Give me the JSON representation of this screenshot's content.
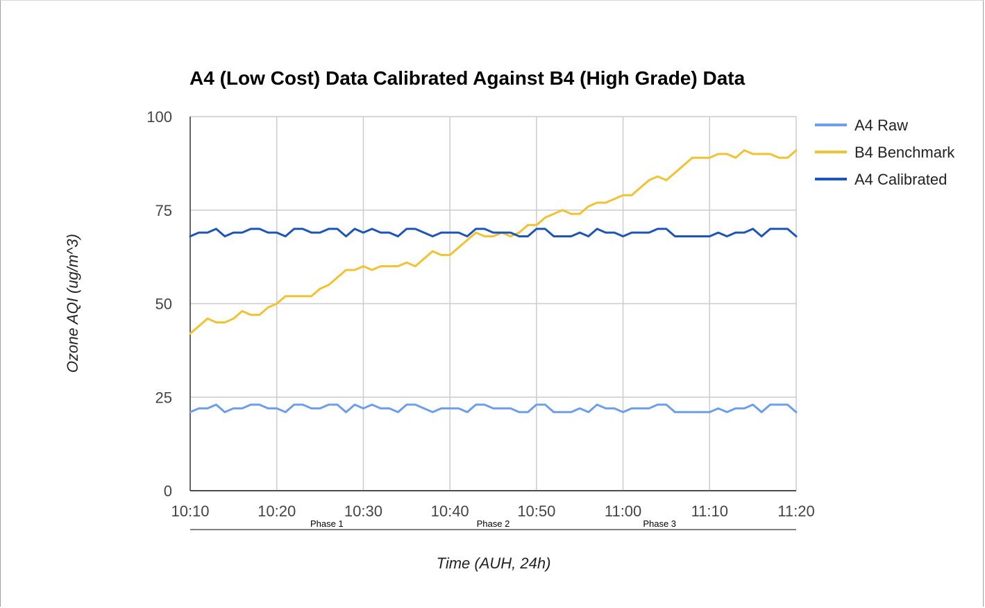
{
  "chart_data": {
    "type": "line",
    "title": "A4 (Low Cost) Data Calibrated Against B4 (High Grade) Data",
    "xlabel": "Time (AUH, 24h)",
    "ylabel": "Ozone AQI (ug/m^3)",
    "ylim": [
      0,
      100
    ],
    "yticks": [
      0,
      25,
      50,
      75,
      100
    ],
    "xticks": [
      "10:10",
      "10:20",
      "10:30",
      "10:40",
      "10:50",
      "11:00",
      "11:10",
      "11:20"
    ],
    "x_start_minutes": 610,
    "x_end_minutes": 680,
    "grid": true,
    "legend_position": "right",
    "x": [
      "10:10",
      "10:11",
      "10:12",
      "10:13",
      "10:14",
      "10:15",
      "10:16",
      "10:17",
      "10:18",
      "10:19",
      "10:20",
      "10:21",
      "10:22",
      "10:23",
      "10:24",
      "10:25",
      "10:26",
      "10:27",
      "10:28",
      "10:29",
      "10:30",
      "10:31",
      "10:32",
      "10:33",
      "10:34",
      "10:35",
      "10:36",
      "10:37",
      "10:38",
      "10:39",
      "10:40",
      "10:41",
      "10:42",
      "10:43",
      "10:44",
      "10:45",
      "10:46",
      "10:47",
      "10:48",
      "10:49",
      "10:50",
      "10:51",
      "10:52",
      "10:53",
      "10:54",
      "10:55",
      "10:56",
      "10:57",
      "10:58",
      "10:59",
      "11:00",
      "11:01",
      "11:02",
      "11:03",
      "11:04",
      "11:05",
      "11:06",
      "11:07",
      "11:08",
      "11:09",
      "11:10",
      "11:11",
      "11:12",
      "11:13",
      "11:14",
      "11:15",
      "11:16",
      "11:17",
      "11:18",
      "11:19",
      "11:20"
    ],
    "series": [
      {
        "name": "A4 Raw",
        "color": "#6d9eeb",
        "values": [
          21,
          22,
          22,
          23,
          21,
          22,
          22,
          23,
          23,
          22,
          22,
          21,
          23,
          23,
          22,
          22,
          23,
          23,
          21,
          23,
          22,
          23,
          22,
          22,
          21,
          23,
          23,
          22,
          21,
          22,
          22,
          22,
          21,
          23,
          23,
          22,
          22,
          22,
          21,
          21,
          23,
          23,
          21,
          21,
          21,
          22,
          21,
          23,
          22,
          22,
          21,
          22,
          22,
          22,
          23,
          23,
          21,
          21,
          21,
          21,
          21,
          22,
          21,
          22,
          22,
          23,
          21,
          23,
          23,
          23,
          21
        ]
      },
      {
        "name": "B4 Benchmark",
        "color": "#f1c232",
        "values": [
          42,
          44,
          46,
          45,
          45,
          46,
          48,
          47,
          47,
          49,
          50,
          52,
          52,
          52,
          52,
          54,
          55,
          57,
          59,
          59,
          60,
          59,
          60,
          60,
          60,
          61,
          60,
          62,
          64,
          63,
          63,
          65,
          67,
          69,
          68,
          68,
          69,
          68,
          69,
          71,
          71,
          73,
          74,
          75,
          74,
          74,
          76,
          77,
          77,
          78,
          79,
          79,
          81,
          83,
          84,
          83,
          85,
          87,
          89,
          89,
          89,
          90,
          90,
          89,
          91,
          90,
          90,
          90,
          89,
          89,
          91
        ]
      },
      {
        "name": "A4 Calibrated",
        "color": "#1c54b7",
        "values": [
          68,
          69,
          69,
          70,
          68,
          69,
          69,
          70,
          70,
          69,
          69,
          68,
          70,
          70,
          69,
          69,
          70,
          70,
          68,
          70,
          69,
          70,
          69,
          69,
          68,
          70,
          70,
          69,
          68,
          69,
          69,
          69,
          68,
          70,
          70,
          69,
          69,
          69,
          68,
          68,
          70,
          70,
          68,
          68,
          68,
          69,
          68,
          70,
          69,
          69,
          68,
          69,
          69,
          69,
          70,
          70,
          68,
          68,
          68,
          68,
          68,
          69,
          68,
          69,
          69,
          70,
          68,
          70,
          70,
          70,
          68
        ]
      }
    ],
    "annotations": [
      {
        "label": "Phase 1",
        "start": "10:10",
        "end": "10:41"
      },
      {
        "label": "Phase 2",
        "start": "10:42",
        "end": "10:48"
      },
      {
        "label": "Phase 3",
        "start": "10:49",
        "end": "11:20"
      }
    ]
  }
}
